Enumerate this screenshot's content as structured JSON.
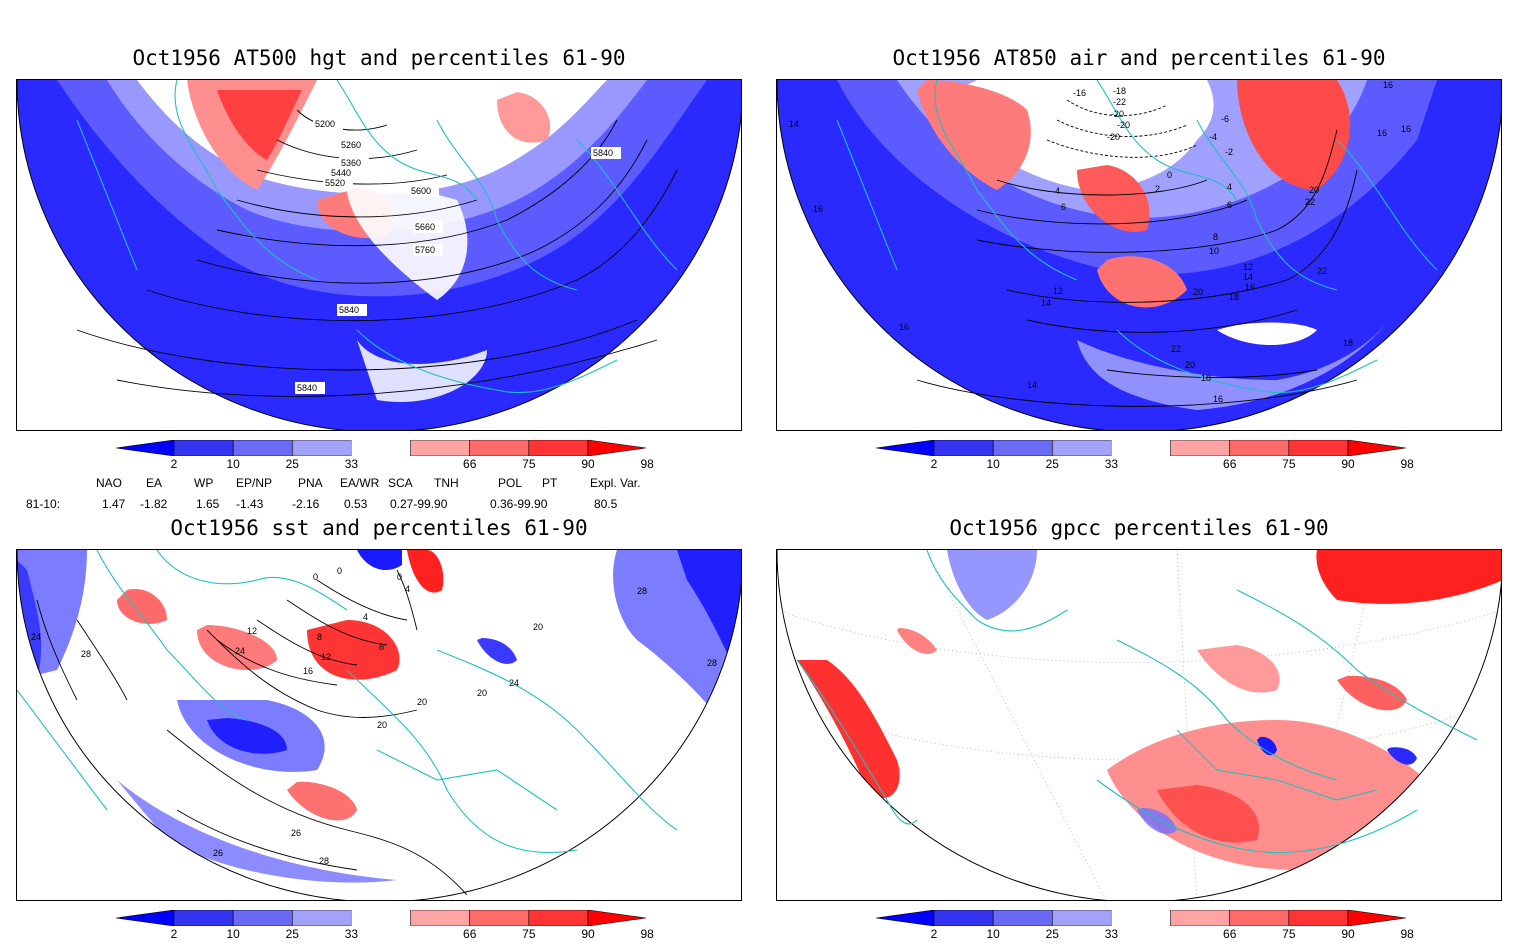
{
  "panels": [
    {
      "title": "Oct1956 AT500 hgt and percentiles 61-90",
      "contour_labels": [
        "5200",
        "5260",
        "5360",
        "5440",
        "5520",
        "5600",
        "5660",
        "5760",
        "5840",
        "5840",
        "5840"
      ]
    },
    {
      "title": "Oct1956 AT850 air and percentiles 61-90",
      "contour_labels": [
        "14",
        "16",
        "16",
        "16",
        "-16",
        "-18",
        "-22",
        "-20",
        "-20",
        "-20",
        "-4",
        "-6",
        "-2",
        "2",
        "0",
        "4",
        "6",
        "4",
        "6",
        "8",
        "10",
        "12",
        "12",
        "14",
        "14",
        "16",
        "18",
        "20",
        "20",
        "22",
        "22",
        "22",
        "20",
        "18",
        "16",
        "14",
        "16",
        "18",
        "16"
      ]
    },
    {
      "title": "Oct1956 sst and percentiles 61-90",
      "contour_labels": [
        "24",
        "28",
        "0",
        "0",
        "0",
        "4",
        "4",
        "8",
        "8",
        "12",
        "12",
        "16",
        "24",
        "20",
        "20",
        "20",
        "20",
        "24",
        "26",
        "28",
        "28",
        "28",
        "26"
      ]
    },
    {
      "title": "Oct1956 gpcc percentiles 61-90",
      "contour_labels": []
    }
  ],
  "colorbar": {
    "ticks": [
      "2",
      "10",
      "25",
      "33",
      "66",
      "75",
      "90",
      "98"
    ],
    "colors": [
      "#0000ff",
      "#3434f0",
      "#6a6af4",
      "#a2a2f8",
      "#ffffff",
      "#ffa4a4",
      "#ff6a6a",
      "#ff3434",
      "#ff0000"
    ]
  },
  "teleconnection": {
    "headers": [
      "NAO",
      "EA",
      "WP",
      "EP/NP",
      "PNA",
      "EA/WR",
      "SCA",
      "TNH",
      "POL",
      "PT",
      "Expl. Var."
    ],
    "row_label": "81-10:",
    "values": [
      "1.47",
      "-1.82",
      "1.65",
      "-1.43",
      "-2.16",
      "0.53",
      "0.27-99.90",
      "0.36-99.90",
      "80.5"
    ]
  },
  "colors": {
    "blue": "#0000ff",
    "mid_blue": "#4d4dff",
    "light_blue": "#8c8cff",
    "pale_blue": "#b4b4ff",
    "red": "#ff0000",
    "mid_red": "#ff4d4d",
    "light_red": "#ff9a9a",
    "coast": "#20c0c0"
  }
}
